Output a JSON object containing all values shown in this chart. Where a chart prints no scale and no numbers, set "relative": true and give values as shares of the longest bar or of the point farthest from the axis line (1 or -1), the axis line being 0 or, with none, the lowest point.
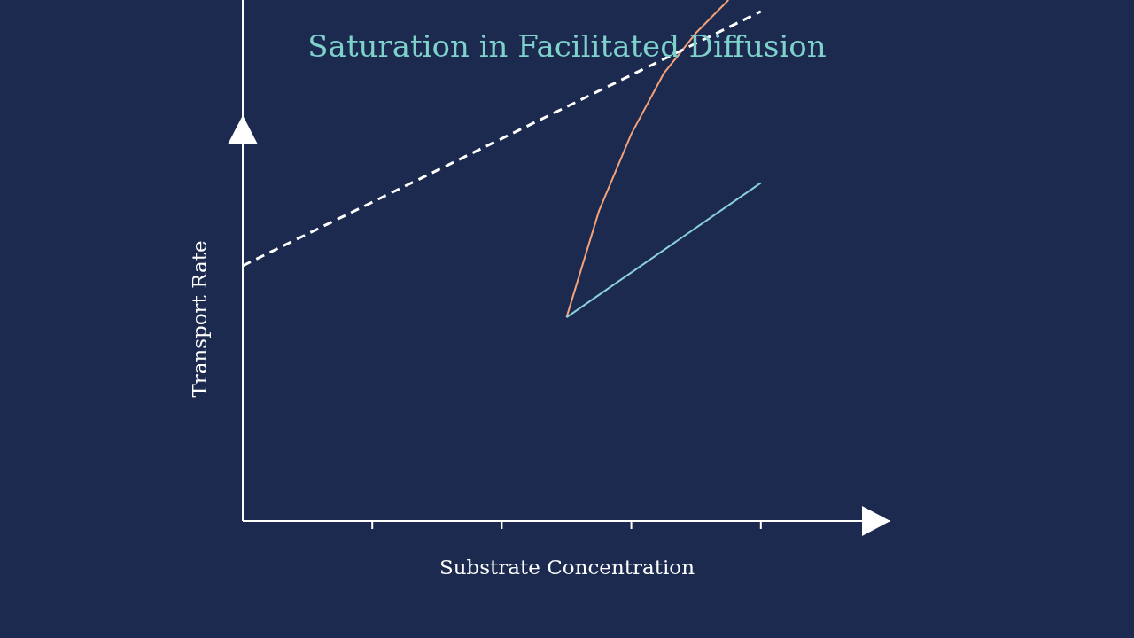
{
  "chart_data": {
    "type": "line",
    "title": "Saturation in Facilitated Diffusion",
    "xlabel": "Substrate Concentration",
    "ylabel": "Transport Rate",
    "relative": true,
    "categories": [
      null,
      null,
      null,
      null,
      null,
      null,
      null,
      null,
      null,
      null,
      null,
      null,
      null,
      null,
      null,
      null,
      null,
      null,
      null,
      null,
      null
    ],
    "series": [
      {
        "color": "#f4a27a",
        "values": [
          null,
          null,
          null,
          null,
          null,
          null,
          null,
          null,
          null,
          null,
          0.391,
          0.595,
          0.743,
          0.859,
          0.937,
          1,
          null,
          null,
          null,
          null,
          null
        ]
      },
      {
        "color": "#8ccfdc",
        "values": [
          null,
          null,
          null,
          null,
          null,
          null,
          null,
          null,
          null,
          null,
          0.391,
          null,
          null,
          null,
          null,
          null,
          0.649,
          null,
          null,
          null,
          null
        ]
      },
      {
        "color": "#ffffff",
        "line_style": "dashed",
        "values": [
          0.49,
          null,
          null,
          null,
          null,
          null,
          null,
          null,
          null,
          null,
          null,
          null,
          null,
          null,
          null,
          null,
          0.978,
          null,
          null,
          null,
          null
        ]
      }
    ]
  }
}
